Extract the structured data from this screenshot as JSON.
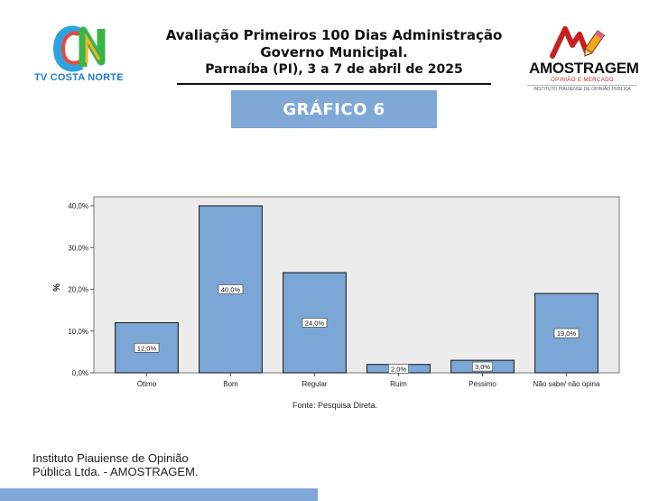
{
  "header": {
    "line1": "Avaliação Primeiros 100 Dias Administração",
    "line2": "Governo Municipal.",
    "line3": "Parnaíba (PI), 3 a 7 de abril de 2025"
  },
  "logo_left": {
    "text": "TV COSTA NORTE"
  },
  "logo_right": {
    "name": "AMOSTRAGEM",
    "tagline": "OPINIÃO E MERCADO",
    "subtitle": "INSTITUTO PIAUIENSE DE OPINIÃO PÚBLICA"
  },
  "badge": "GRÁFICO 6",
  "chart_data": {
    "type": "bar",
    "categories": [
      "Ótimo",
      "Bom",
      "Regular",
      "Ruim",
      "Péssimo",
      "Não sabe/ não opina"
    ],
    "values": [
      12.0,
      40.0,
      24.0,
      2.0,
      3.0,
      19.0
    ],
    "value_labels": [
      "12,0%",
      "40,0%",
      "24,0%",
      "2,0%",
      "3,0%",
      "19,0%"
    ],
    "ylabel": "%",
    "ylim": [
      0,
      40
    ],
    "yticks": [
      0,
      10,
      20,
      30,
      40
    ],
    "ytick_labels": [
      "0,0%",
      "10,0%",
      "20,0%",
      "30,0%",
      "40,0%"
    ],
    "bar_color": "#7ba7d6",
    "plot_background": "#ececec",
    "grid": false,
    "source": "Fonte: Pesquisa Direta."
  },
  "footer": {
    "line1": "Instituto Piauiense de Opinião",
    "line2": "Pública Ltda. - AMOSTRAGEM."
  }
}
